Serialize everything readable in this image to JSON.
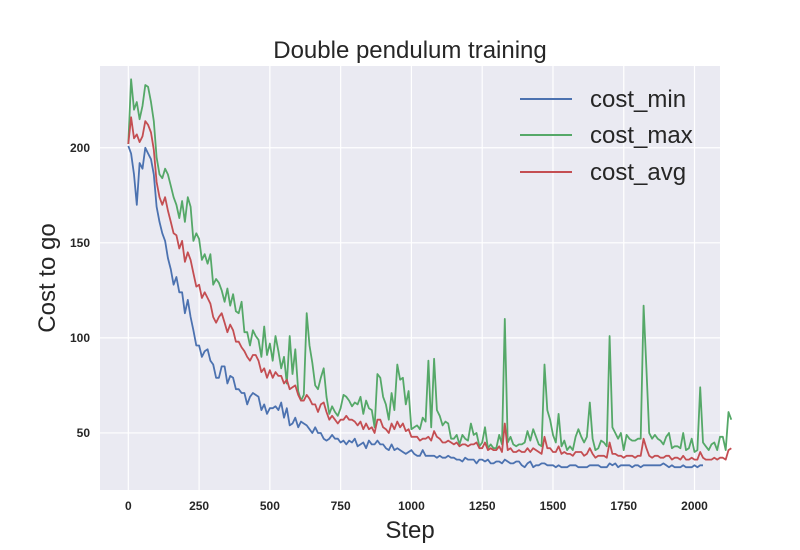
{
  "chart_data": {
    "type": "line",
    "title": "Double pendulum training",
    "xlabel": "Step",
    "ylabel": "Cost to go",
    "xlim": [
      -100,
      2090
    ],
    "ylim": [
      20,
      243
    ],
    "xticks": [
      0,
      250,
      500,
      750,
      1000,
      1250,
      1500,
      1750,
      2000
    ],
    "yticks": [
      50,
      100,
      150,
      200
    ],
    "grid": true,
    "legend_position": "top-right",
    "x_step": 10,
    "series": [
      {
        "name": "cost_min",
        "color": "#4c72b0",
        "values": [
          201,
          197,
          186,
          170,
          192,
          189,
          200,
          197,
          194,
          186,
          169,
          161,
          155,
          151,
          142,
          136,
          128,
          132,
          124,
          124,
          113,
          120,
          111,
          104,
          96,
          96,
          90,
          93,
          94,
          88,
          86,
          79,
          79,
          85,
          85,
          76,
          80,
          79,
          73,
          73,
          71,
          71,
          65,
          69,
          71,
          70,
          69,
          62,
          65,
          60,
          63,
          63,
          64,
          62,
          66,
          58,
          63,
          54,
          55,
          58,
          53,
          56,
          55,
          54,
          52,
          50,
          53,
          50,
          50,
          47,
          46,
          47,
          49,
          47,
          47,
          45,
          46,
          44,
          46,
          45,
          47,
          43,
          44,
          45,
          42,
          46,
          44,
          44,
          46,
          44,
          44,
          42,
          41,
          44,
          41,
          42,
          41,
          40,
          39,
          40,
          41,
          39,
          38,
          38,
          41,
          38,
          38,
          38,
          38,
          37,
          38,
          37,
          37,
          38,
          37,
          37,
          36,
          36,
          35,
          37,
          36,
          36,
          36,
          34,
          36,
          36,
          35,
          36,
          34,
          34,
          35,
          35,
          34,
          36,
          35,
          34,
          34,
          35,
          35,
          33,
          32,
          34,
          35,
          32,
          33,
          33,
          34,
          34,
          33,
          33,
          33,
          32,
          33,
          32,
          32,
          32,
          33,
          33,
          33,
          32,
          32,
          32,
          32,
          33,
          33,
          33,
          33,
          32,
          32,
          32,
          34,
          33,
          34,
          32,
          33,
          33,
          33,
          33,
          32,
          33,
          33,
          32,
          33,
          33,
          33,
          33,
          33,
          33,
          33,
          34,
          33,
          32,
          33,
          32,
          32,
          32,
          33,
          32,
          32,
          32,
          33,
          32,
          33,
          33
        ]
      },
      {
        "name": "cost_max",
        "color": "#55a868",
        "values": [
          202,
          236,
          220,
          224,
          215,
          222,
          233,
          232,
          224,
          214,
          195,
          186,
          184,
          189,
          186,
          180,
          174,
          170,
          163,
          172,
          161,
          174,
          169,
          151,
          155,
          152,
          141,
          144,
          139,
          144,
          128,
          131,
          129,
          125,
          119,
          126,
          117,
          123,
          114,
          113,
          119,
          103,
          103,
          96,
          104,
          101,
          99,
          90,
          106,
          91,
          97,
          88,
          101,
          93,
          84,
          90,
          76,
          101,
          81,
          94,
          72,
          67,
          70,
          113,
          96,
          87,
          75,
          73,
          79,
          84,
          69,
          60,
          64,
          61,
          59,
          63,
          70,
          69,
          67,
          64,
          66,
          65,
          69,
          60,
          67,
          63,
          62,
          53,
          81,
          79,
          69,
          65,
          57,
          71,
          62,
          86,
          78,
          79,
          65,
          72,
          52,
          53,
          54,
          52,
          58,
          56,
          88,
          53,
          89,
          62,
          59,
          54,
          56,
          55,
          47,
          47,
          49,
          44,
          49,
          47,
          46,
          55,
          49,
          50,
          43,
          45,
          53,
          42,
          44,
          42,
          42,
          49,
          44,
          110,
          45,
          48,
          44,
          43,
          44,
          44,
          45,
          51,
          46,
          52,
          48,
          44,
          43,
          86,
          62,
          57,
          49,
          45,
          60,
          43,
          46,
          41,
          43,
          41,
          48,
          52,
          48,
          45,
          48,
          66,
          47,
          41,
          42,
          46,
          45,
          43,
          101,
          53,
          50,
          47,
          50,
          41,
          49,
          47,
          46,
          46,
          47,
          47,
          117,
          84,
          50,
          47,
          49,
          47,
          46,
          44,
          48,
          50,
          42,
          43,
          43,
          42,
          50,
          41,
          42,
          47,
          40,
          41,
          74,
          45,
          43,
          41,
          44,
          45,
          41,
          48,
          48,
          41,
          61,
          57
        ]
      },
      {
        "name": "cost_avg",
        "color": "#c44e52",
        "values": [
          202,
          216,
          205,
          207,
          203,
          206,
          214,
          212,
          208,
          199,
          182,
          174,
          170,
          174,
          167,
          161,
          155,
          154,
          147,
          151,
          140,
          145,
          141,
          134,
          127,
          128,
          121,
          124,
          121,
          118,
          111,
          108,
          111,
          113,
          108,
          103,
          107,
          104,
          98,
          98,
          95,
          93,
          90,
          88,
          91,
          91,
          88,
          82,
          84,
          79,
          83,
          79,
          82,
          80,
          80,
          76,
          78,
          73,
          74,
          75,
          70,
          67,
          67,
          70,
          68,
          65,
          65,
          61,
          65,
          66,
          61,
          57,
          59,
          57,
          55,
          57,
          57,
          59,
          57,
          57,
          56,
          54,
          56,
          52,
          55,
          52,
          53,
          50,
          57,
          57,
          53,
          52,
          50,
          55,
          52,
          56,
          53,
          55,
          51,
          52,
          48,
          48,
          48,
          46,
          47,
          47,
          48,
          46,
          51,
          48,
          47,
          45,
          45,
          46,
          45,
          44,
          45,
          43,
          44,
          44,
          43,
          44,
          44,
          45,
          42,
          42,
          45,
          41,
          42,
          41,
          41,
          43,
          40,
          55,
          41,
          42,
          40,
          40,
          41,
          40,
          40,
          42,
          40,
          42,
          41,
          40,
          39,
          48,
          42,
          42,
          40,
          40,
          43,
          39,
          40,
          39,
          39,
          38,
          40,
          40,
          40,
          38,
          39,
          42,
          39,
          37,
          38,
          38,
          38,
          37,
          45,
          39,
          39,
          38,
          38,
          37,
          38,
          38,
          38,
          37,
          38,
          38,
          47,
          42,
          38,
          37,
          38,
          38,
          37,
          37,
          38,
          38,
          36,
          37,
          37,
          36,
          38,
          36,
          36,
          37,
          36,
          36,
          40,
          37,
          36,
          36,
          36,
          37,
          36,
          37,
          37,
          36,
          41,
          42
        ]
      }
    ]
  }
}
